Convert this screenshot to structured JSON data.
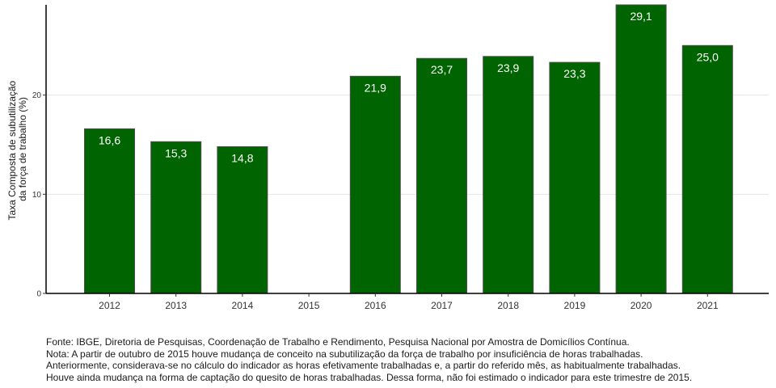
{
  "chart_data": {
    "type": "bar",
    "categories": [
      "2012",
      "2013",
      "2014",
      "2015",
      "2016",
      "2017",
      "2018",
      "2019",
      "2020",
      "2021"
    ],
    "values": [
      16.6,
      15.3,
      14.8,
      null,
      21.9,
      23.7,
      23.9,
      23.3,
      29.1,
      25.0
    ],
    "data_labels": [
      "16,6",
      "15,3",
      "14,8",
      "",
      "21,9",
      "23,7",
      "23,9",
      "23,3",
      "29,1",
      "25,0"
    ],
    "title": "",
    "xlabel": "",
    "ylabel_lines": [
      "Taxa Composta de subutilização",
      "da força de trabalho (%)"
    ],
    "yticks": [
      0,
      10,
      20
    ],
    "ytick_labels": [
      "0",
      "10",
      "20"
    ],
    "ylim": [
      0,
      29.1
    ],
    "grid": "horizontal",
    "bar_color": "#006400",
    "legend": "none"
  },
  "notes": [
    "Fonte: IBGE, Diretoria de Pesquisas, Coordenação de Trabalho e Rendimento, Pesquisa Nacional por Amostra de Domicílios Contínua.",
    "Nota: A partir de outubro de 2015 houve mudança de conceito na subutilização da força de trabalho por insuficiência de horas trabalhadas.",
    "Anteriormente, considerava-se no cálculo do indicador as horas efetivamente trabalhadas e, a partir do referido mês, as habitualmente trabalhadas.",
    "Houve ainda mudança na forma de captação do quesito de horas trabalhadas. Dessa forma, não foi estimado o indicador para este trimestre de 2015."
  ]
}
